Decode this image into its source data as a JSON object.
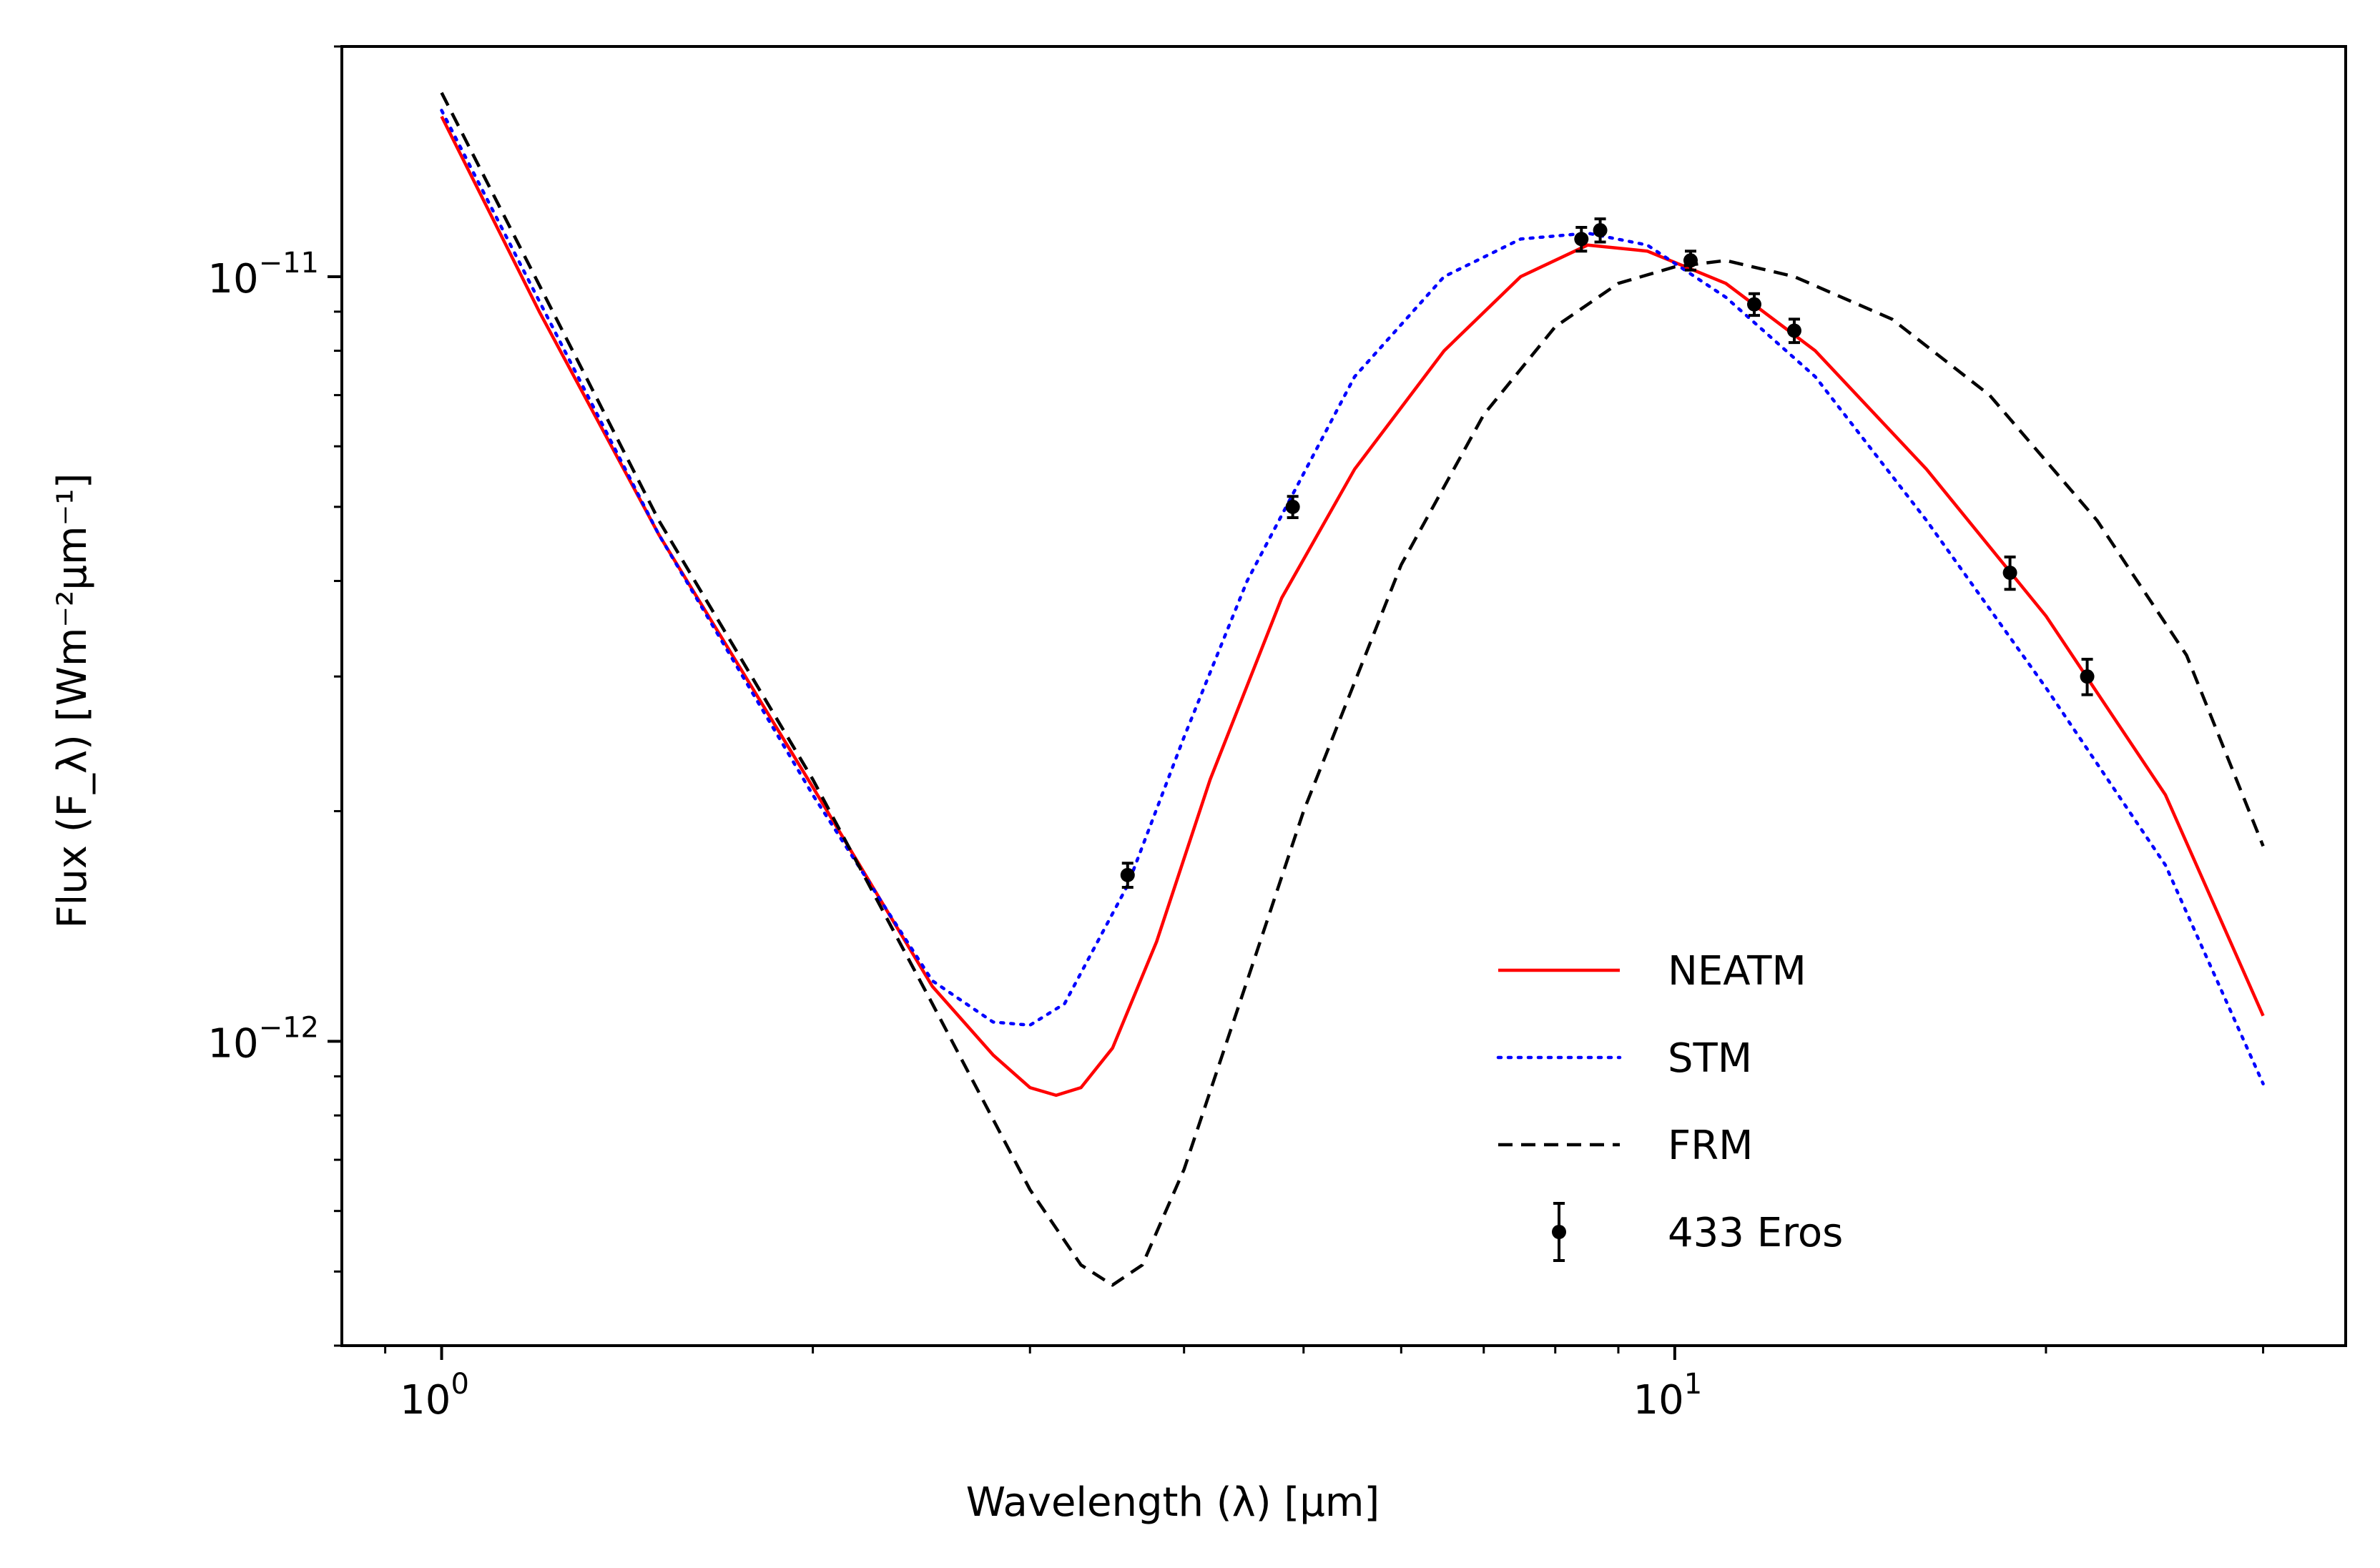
{
  "chart_data": {
    "type": "line",
    "xlabel": "Wavelength (λ) [μm]",
    "ylabel": "Flux (F_λ) [Wm⁻²μm⁻¹]",
    "x_scale": "log",
    "y_scale": "log",
    "xlim": [
      0.83,
      35
    ],
    "ylim": [
      4e-13,
      2e-11
    ],
    "grid": false,
    "legend_position": "lower-right",
    "x_ticks": [
      {
        "value": 1,
        "base": "10",
        "exp": "0"
      },
      {
        "value": 10,
        "base": "10",
        "exp": "1"
      }
    ],
    "y_ticks": [
      {
        "value": 1e-11,
        "base": "10",
        "exp": "−11"
      },
      {
        "value": 1e-12,
        "base": "10",
        "exp": "−12"
      }
    ],
    "series": [
      {
        "name": "NEATM",
        "style": "solid",
        "color": "#ff0000",
        "points": [
          [
            1.0,
            1.62e-11
          ],
          [
            1.2,
            9e-12
          ],
          [
            1.5,
            4.6e-12
          ],
          [
            2.0,
            2.15e-12
          ],
          [
            2.5,
            1.18e-12
          ],
          [
            2.8,
            9.6e-13
          ],
          [
            3.0,
            8.7e-13
          ],
          [
            3.15,
            8.5e-13
          ],
          [
            3.3,
            8.7e-13
          ],
          [
            3.5,
            9.8e-13
          ],
          [
            3.8,
            1.35e-12
          ],
          [
            4.2,
            2.2e-12
          ],
          [
            4.8,
            3.8e-12
          ],
          [
            5.5,
            5.6e-12
          ],
          [
            6.5,
            8e-12
          ],
          [
            7.5,
            1e-11
          ],
          [
            8.5,
            1.1e-11
          ],
          [
            9.5,
            1.08e-11
          ],
          [
            11.0,
            9.8e-12
          ],
          [
            13.0,
            8e-12
          ],
          [
            16.0,
            5.6e-12
          ],
          [
            20.0,
            3.6e-12
          ],
          [
            25.0,
            2.1e-12
          ],
          [
            30.0,
            1.08e-12
          ]
        ]
      },
      {
        "name": "STM",
        "style": "dotted",
        "color": "#0000ff",
        "points": [
          [
            1.0,
            1.65e-11
          ],
          [
            1.5,
            4.6e-12
          ],
          [
            2.0,
            2.1e-12
          ],
          [
            2.5,
            1.2e-12
          ],
          [
            2.8,
            1.06e-12
          ],
          [
            3.0,
            1.05e-12
          ],
          [
            3.2,
            1.12e-12
          ],
          [
            3.6,
            1.6e-12
          ],
          [
            4.0,
            2.5e-12
          ],
          [
            4.5,
            4e-12
          ],
          [
            5.5,
            7.4e-12
          ],
          [
            6.5,
            1e-11
          ],
          [
            7.5,
            1.12e-11
          ],
          [
            8.5,
            1.14e-11
          ],
          [
            9.5,
            1.1e-11
          ],
          [
            11.0,
            9.4e-12
          ],
          [
            13.0,
            7.4e-12
          ],
          [
            16.0,
            4.8e-12
          ],
          [
            20.0,
            2.9e-12
          ],
          [
            25.0,
            1.7e-12
          ],
          [
            30.0,
            8.8e-13
          ]
        ]
      },
      {
        "name": "FRM",
        "style": "dashed",
        "color": "#000000",
        "points": [
          [
            1.0,
            1.74e-11
          ],
          [
            1.5,
            4.8e-12
          ],
          [
            2.0,
            2.2e-12
          ],
          [
            2.5,
            1.12e-12
          ],
          [
            3.0,
            6.4e-13
          ],
          [
            3.3,
            5.1e-13
          ],
          [
            3.5,
            4.8e-13
          ],
          [
            3.7,
            5.1e-13
          ],
          [
            4.0,
            6.8e-13
          ],
          [
            4.5,
            1.2e-12
          ],
          [
            5.0,
            2e-12
          ],
          [
            6.0,
            4.2e-12
          ],
          [
            7.0,
            6.6e-12
          ],
          [
            8.0,
            8.6e-12
          ],
          [
            9.0,
            9.8e-12
          ],
          [
            10.0,
            1.03e-11
          ],
          [
            11.0,
            1.05e-11
          ],
          [
            12.5,
            1e-11
          ],
          [
            15.0,
            8.8e-12
          ],
          [
            18.0,
            7e-12
          ],
          [
            22.0,
            4.8e-12
          ],
          [
            26.0,
            3.2e-12
          ],
          [
            30.0,
            1.8e-12
          ]
        ]
      },
      {
        "name": "433 Eros",
        "style": "errorbar",
        "color": "#000000",
        "points": [
          {
            "x": 3.6,
            "y": 1.65e-12,
            "err": 6e-14
          },
          {
            "x": 4.9,
            "y": 5e-12,
            "err": 1.6e-13
          },
          {
            "x": 8.4,
            "y": 1.12e-11,
            "err": 4e-13
          },
          {
            "x": 8.7,
            "y": 1.15e-11,
            "err": 4e-13
          },
          {
            "x": 10.3,
            "y": 1.05e-11,
            "err": 3e-13
          },
          {
            "x": 11.6,
            "y": 9.2e-12,
            "err": 3e-13
          },
          {
            "x": 12.5,
            "y": 8.5e-12,
            "err": 3e-13
          },
          {
            "x": 18.7,
            "y": 4.1e-12,
            "err": 2e-13
          },
          {
            "x": 21.6,
            "y": 3e-12,
            "err": 1.6e-13
          }
        ]
      }
    ]
  }
}
